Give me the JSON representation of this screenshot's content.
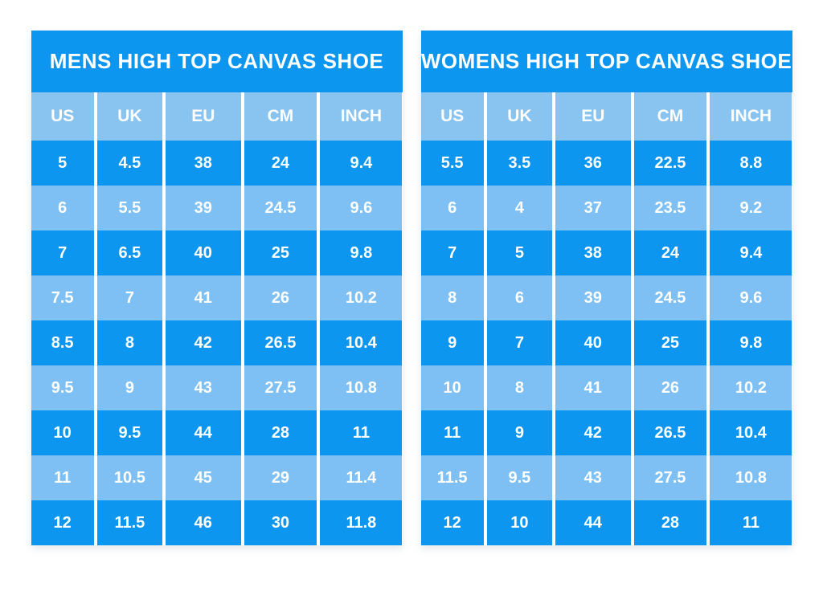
{
  "colors": {
    "page_bg": "#ffffff",
    "title_bg": "#0d96f0",
    "row_dark": "#0d96f0",
    "row_light": "#7ec0f3",
    "header_bg": "#89c3f0",
    "divider": "#ffffff",
    "text": "#ffffff"
  },
  "chart_data": [
    {
      "type": "table",
      "title": "MENS HIGH TOP CANVAS SHOE",
      "columns": [
        "US",
        "UK",
        "EU",
        "CM",
        "INCH"
      ],
      "rows": [
        [
          5,
          4.5,
          38,
          24,
          9.4
        ],
        [
          6,
          5.5,
          39,
          24.5,
          9.6
        ],
        [
          7,
          6.5,
          40,
          25,
          9.8
        ],
        [
          7.5,
          7,
          41,
          26,
          10.2
        ],
        [
          8.5,
          8,
          42,
          26.5,
          10.4
        ],
        [
          9.5,
          9,
          43,
          27.5,
          10.8
        ],
        [
          10,
          9.5,
          44,
          28,
          11
        ],
        [
          11,
          10.5,
          45,
          29,
          11.4
        ],
        [
          12,
          11.5,
          46,
          30,
          11.8
        ]
      ]
    },
    {
      "type": "table",
      "title": "WOMENS HIGH TOP CANVAS SHOE",
      "columns": [
        "US",
        "UK",
        "EU",
        "CM",
        "INCH"
      ],
      "rows": [
        [
          5.5,
          3.5,
          36,
          22.5,
          8.8
        ],
        [
          6,
          4,
          37,
          23.5,
          9.2
        ],
        [
          7,
          5,
          38,
          24,
          9.4
        ],
        [
          8,
          6,
          39,
          24.5,
          9.6
        ],
        [
          9,
          7,
          40,
          25,
          9.8
        ],
        [
          10,
          8,
          41,
          26,
          10.2
        ],
        [
          11,
          9,
          42,
          26.5,
          10.4
        ],
        [
          11.5,
          9.5,
          43,
          27.5,
          10.8
        ],
        [
          12,
          10,
          44,
          28,
          11
        ]
      ]
    }
  ]
}
